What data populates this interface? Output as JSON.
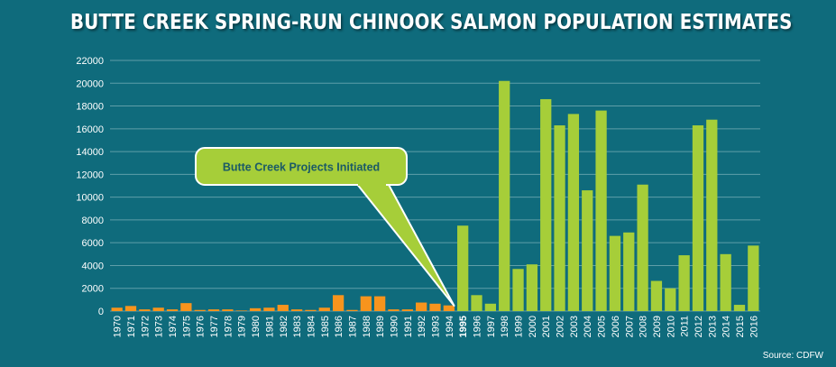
{
  "chart_data": {
    "type": "bar",
    "title": "BUTTE CREEK SPRING-RUN CHINOOK SALMON POPULATION ESTIMATES",
    "source": "Source: CDFW",
    "xlabel": "",
    "ylabel": "",
    "ylim": [
      0,
      22000
    ],
    "yticks": [
      0,
      2000,
      4000,
      6000,
      8000,
      10000,
      12000,
      14000,
      16000,
      18000,
      20000,
      22000
    ],
    "grid": true,
    "categories": [
      "1970",
      "1971",
      "1972",
      "1973",
      "1974",
      "1975",
      "1976",
      "1977",
      "1978",
      "1979",
      "1980",
      "1981",
      "1982",
      "1983",
      "1984",
      "1985",
      "1986",
      "1987",
      "1988",
      "1989",
      "1990",
      "1991",
      "1992",
      "1993",
      "1994",
      "1995",
      "1996",
      "1997",
      "1998",
      "1999",
      "2000",
      "2001",
      "2002",
      "2003",
      "2004",
      "2005",
      "2006",
      "2007",
      "2008",
      "2009",
      "2010",
      "2011",
      "2012",
      "2013",
      "2014",
      "2015",
      "2016"
    ],
    "values": [
      300,
      450,
      150,
      300,
      150,
      700,
      100,
      150,
      150,
      50,
      250,
      300,
      550,
      150,
      100,
      300,
      1400,
      100,
      1300,
      1300,
      150,
      150,
      750,
      650,
      500,
      7500,
      1400,
      650,
      20200,
      3700,
      4100,
      18600,
      16300,
      17300,
      10600,
      17600,
      6600,
      6900,
      11100,
      2650,
      2000,
      4900,
      16300,
      16800,
      5000,
      550,
      5750
    ],
    "highlight_category": "1995",
    "colors": {
      "before": "#f7941d",
      "after": "#a6ce39",
      "background": "#0f6b7c",
      "grid": "#5f9ea9"
    },
    "annotation": {
      "text": "Butte Creek Projects Initiated",
      "points_to": "1995"
    }
  }
}
